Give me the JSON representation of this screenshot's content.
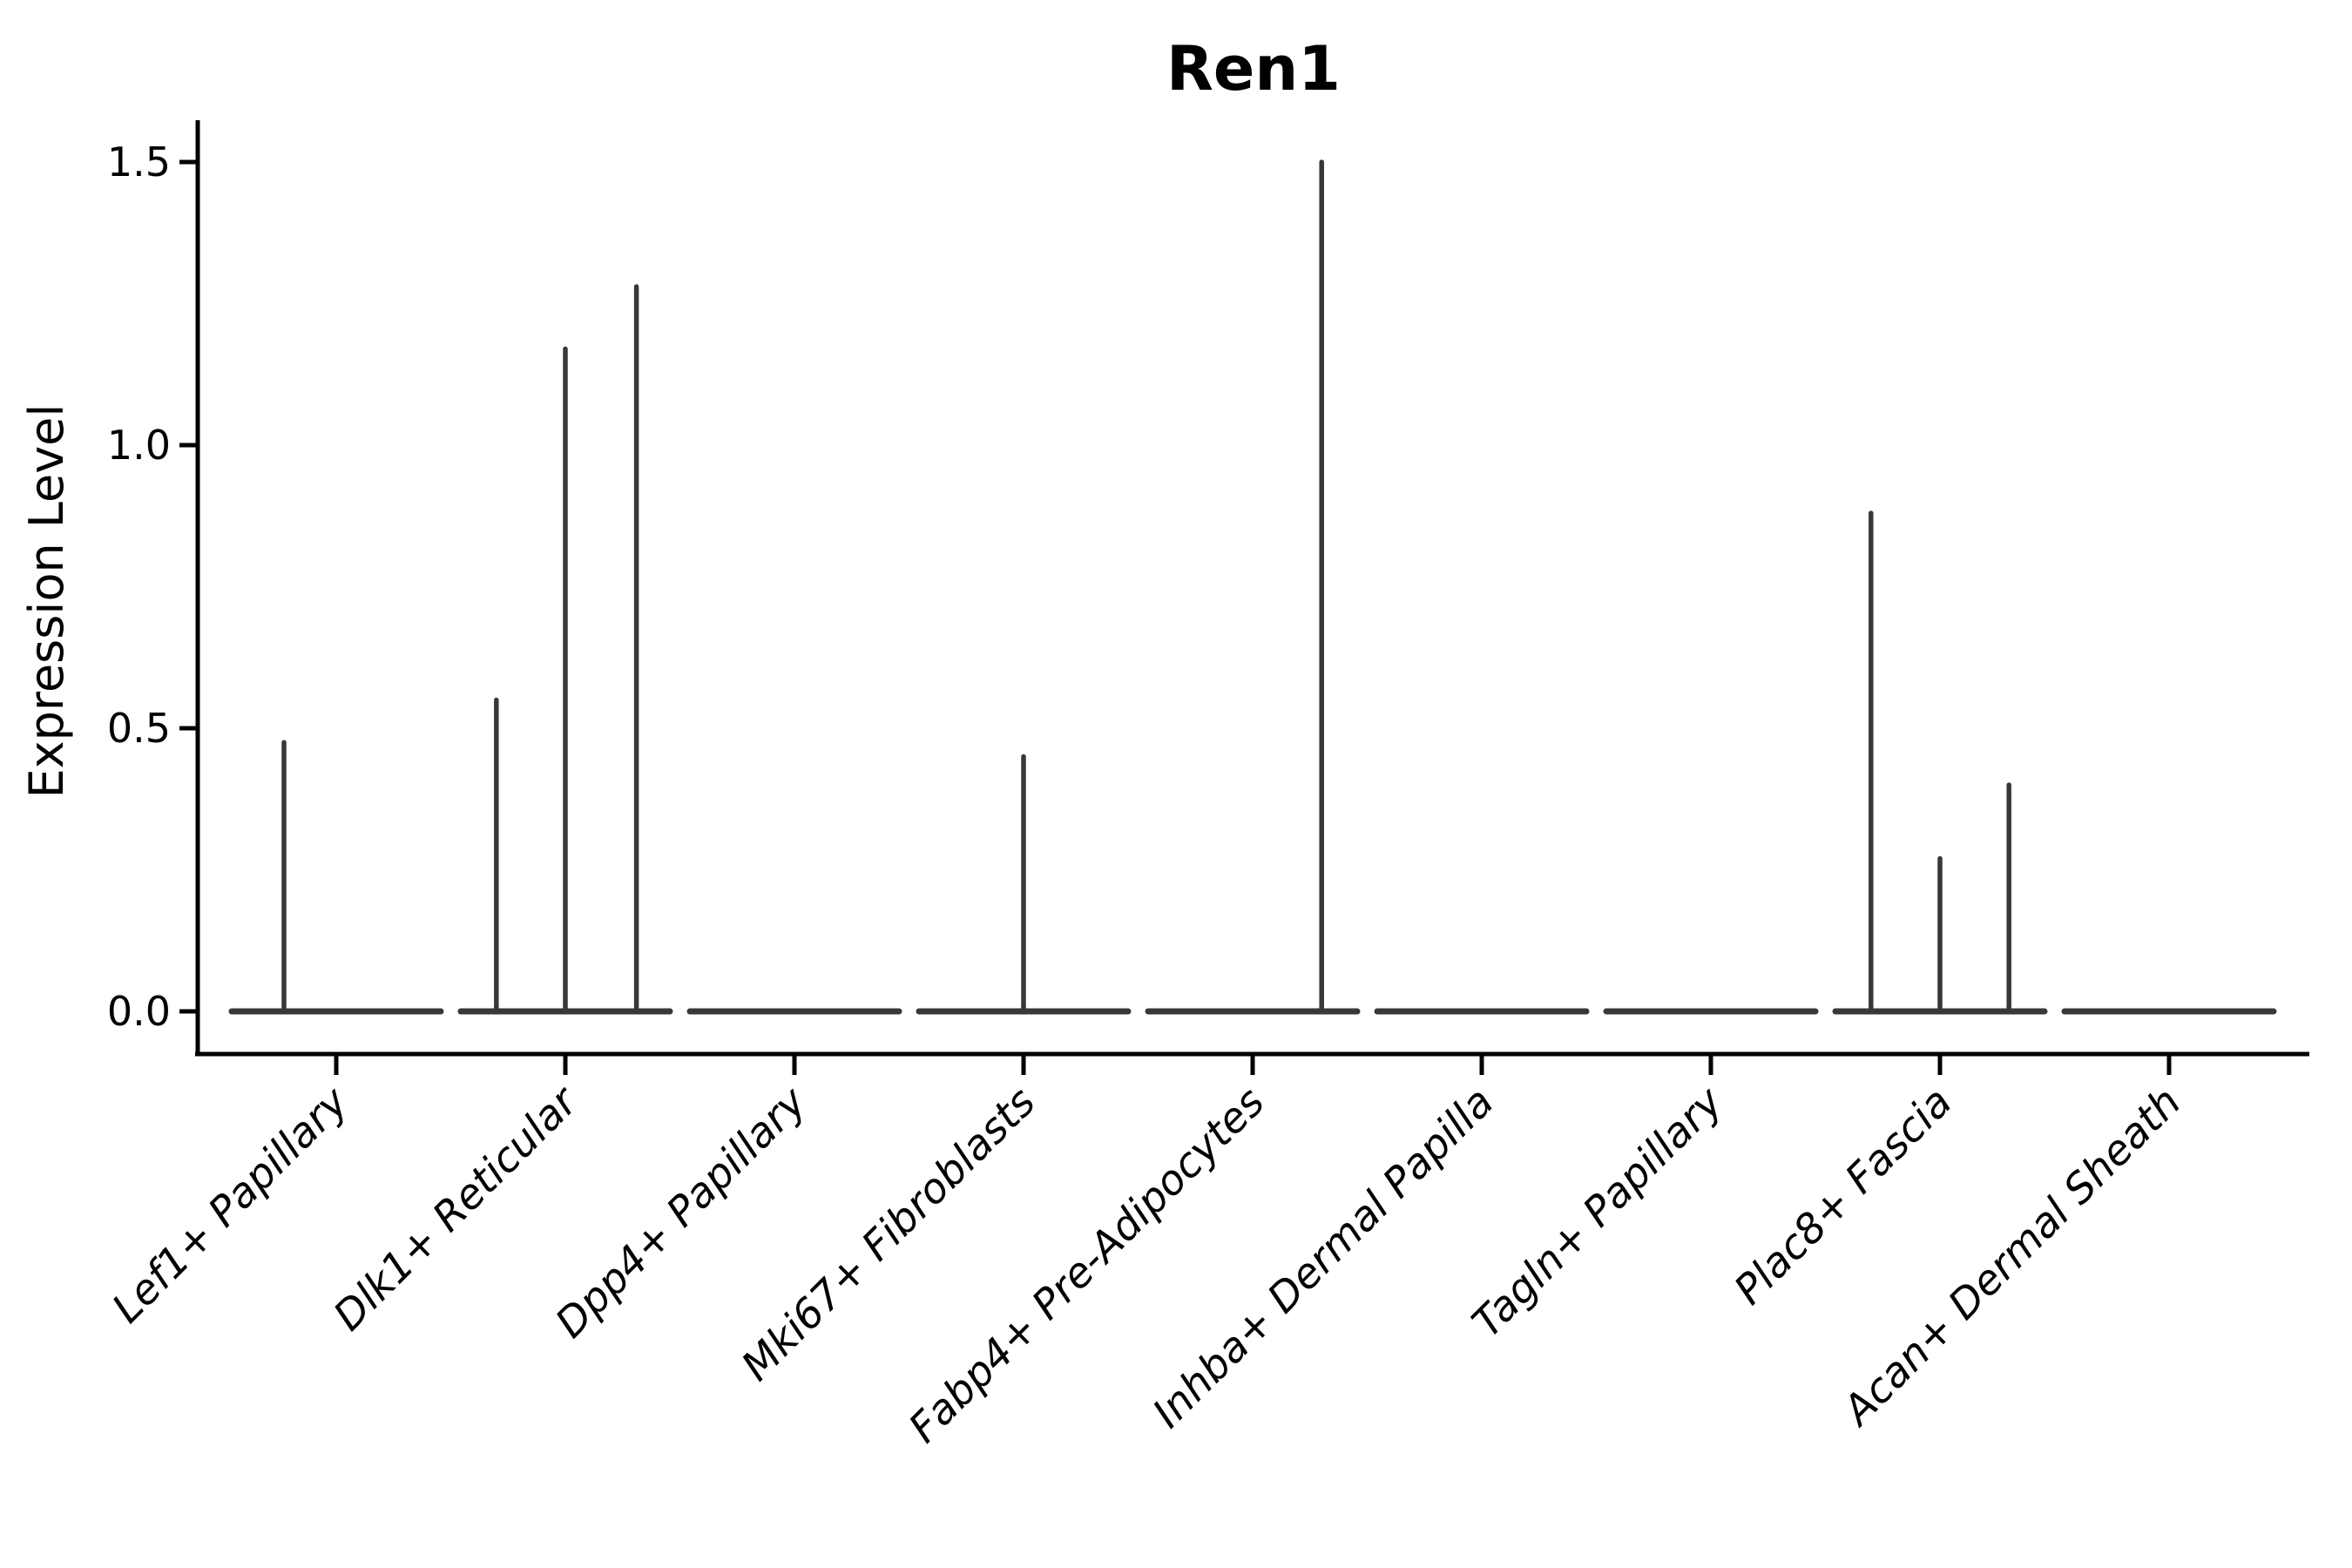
{
  "title": "Ren1",
  "axes": {
    "ylabel": "Expression Level"
  },
  "chart_data": {
    "type": "violin",
    "title": "Ren1",
    "xlabel": "",
    "ylabel": "Expression Level",
    "ylim": [
      0,
      1.5
    ],
    "yticks": [
      0,
      0.5,
      1.0,
      1.5
    ],
    "ytick_labels": [
      "0.0",
      "0.5",
      "1.0",
      "1.5"
    ],
    "grid": false,
    "legend": "none",
    "x_tick_rotation": 45,
    "categories": [
      "Lef1+ Papillary",
      "Dlk1+ Reticular",
      "Dpp4+ Papillary",
      "Mki67+ Fibroblasts",
      "Fabp4+ Pre-Adipocytes",
      "Inhba+ Dermal Papilla",
      "Tagln+ Papillary",
      "Plac8+ Fascia",
      "Acan+ Dermal Sheath"
    ],
    "violins": [
      {
        "category": "Lef1+ Papillary",
        "baseline_value": 0,
        "spikes": [
          {
            "x_fraction": 0.25,
            "value": 0.475
          }
        ]
      },
      {
        "category": "Dlk1+ Reticular",
        "baseline_value": 0,
        "spikes": [
          {
            "x_fraction": 0.17,
            "value": 0.55
          },
          {
            "x_fraction": 0.5,
            "value": 1.17
          },
          {
            "x_fraction": 0.84,
            "value": 1.28
          }
        ]
      },
      {
        "category": "Dpp4+ Papillary",
        "baseline_value": 0,
        "spikes": []
      },
      {
        "category": "Mki67+ Fibroblasts",
        "baseline_value": 0,
        "spikes": [
          {
            "x_fraction": 0.5,
            "value": 0.45
          }
        ]
      },
      {
        "category": "Fabp4+ Pre-Adipocytes",
        "baseline_value": 0,
        "spikes": [
          {
            "x_fraction": 0.83,
            "value": 1.5
          }
        ]
      },
      {
        "category": "Inhba+ Dermal Papilla",
        "baseline_value": 0,
        "spikes": []
      },
      {
        "category": "Tagln+ Papillary",
        "baseline_value": 0,
        "spikes": []
      },
      {
        "category": "Plac8+ Fascia",
        "baseline_value": 0,
        "spikes": [
          {
            "x_fraction": 0.17,
            "value": 0.88
          },
          {
            "x_fraction": 0.5,
            "value": 0.27
          },
          {
            "x_fraction": 0.83,
            "value": 0.4
          }
        ]
      },
      {
        "category": "Acan+ Dermal Sheath",
        "baseline_value": 0,
        "spikes": []
      }
    ],
    "colors": {
      "violin_stroke": "#383838",
      "axis": "#000000",
      "text": "#000000",
      "background": "#ffffff"
    }
  }
}
